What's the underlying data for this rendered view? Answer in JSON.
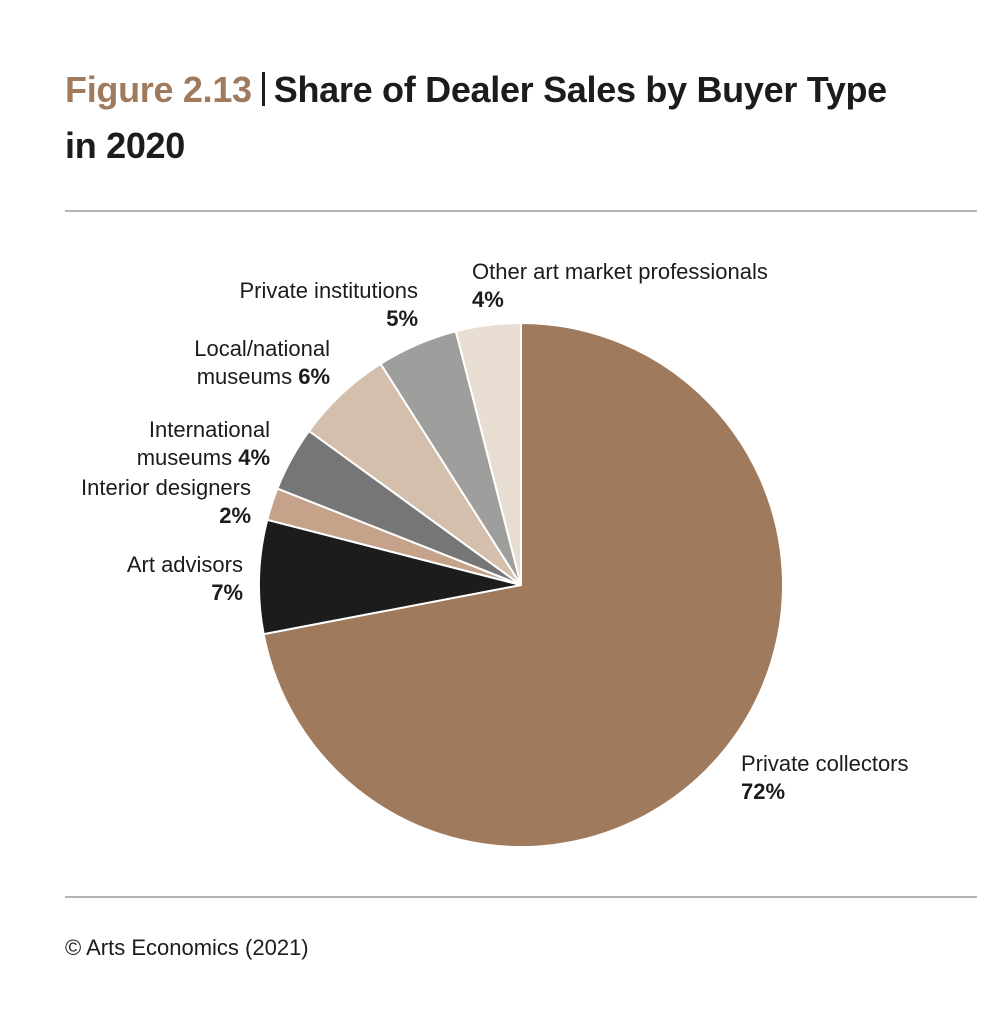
{
  "chart_data": {
    "type": "pie",
    "figure_label": "Figure 2.13",
    "title": "Share of Dealer Sales by Buyer Type in 2020",
    "categories": [
      "Private collectors",
      "Art advisors",
      "Interior designers",
      "International museums",
      "Local/national museums",
      "Private institutions",
      "Other art market professionals"
    ],
    "values": [
      72,
      7,
      2,
      4,
      6,
      5,
      4
    ],
    "value_labels": [
      "72%",
      "7%",
      "2%",
      "4%",
      "6%",
      "5%",
      "4%"
    ],
    "colors": [
      "#a07a5c",
      "#1c1c1c",
      "#c4a38a",
      "#767676",
      "#d4bfad",
      "#9e9e9c",
      "#e8ddd1"
    ],
    "start_angle": 0,
    "direction": "clockwise",
    "source": "© Arts Economics (2021)"
  }
}
